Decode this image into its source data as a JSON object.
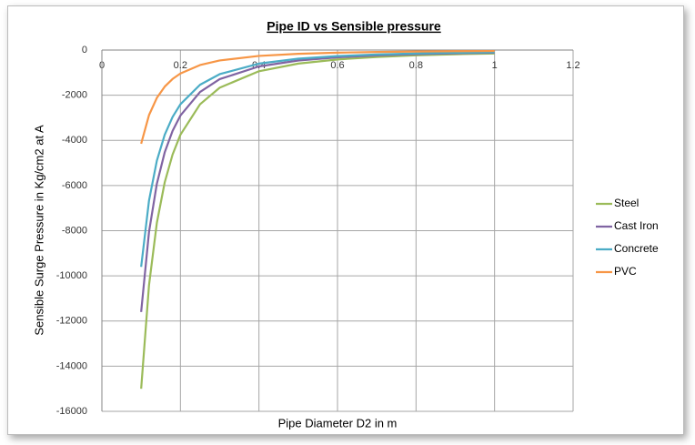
{
  "chart_data": {
    "type": "line",
    "title": "Pipe ID vs Sensible pressure",
    "x_label": "Pipe Diameter D2 in m",
    "y_label": "Sensible Surge Pressure in Kg/cm2 at A",
    "x": [
      0.1,
      0.12,
      0.14,
      0.16,
      0.18,
      0.2,
      0.25,
      0.3,
      0.4,
      0.5,
      0.6,
      0.7,
      0.8,
      0.9,
      1.0
    ],
    "series": [
      {
        "name": "Steel",
        "color": "#9bbb59",
        "values": [
          -15000,
          -10417,
          -7653,
          -5859,
          -4630,
          -3750,
          -2400,
          -1667,
          -938,
          -600,
          -417,
          -306,
          -234,
          -185,
          -150
        ]
      },
      {
        "name": "Cast Iron",
        "color": "#8064a2",
        "values": [
          -11600,
          -8056,
          -5918,
          -4531,
          -3580,
          -2900,
          -1856,
          -1289,
          -725,
          -464,
          -322,
          -237,
          -181,
          -143,
          -116
        ]
      },
      {
        "name": "Concrete",
        "color": "#4bacc6",
        "values": [
          -9600,
          -6667,
          -4898,
          -3750,
          -2963,
          -2400,
          -1536,
          -1067,
          -600,
          -384,
          -267,
          -196,
          -150,
          -119,
          -96
        ]
      },
      {
        "name": "PVC",
        "color": "#f79646",
        "values": [
          -4150,
          -2882,
          -2117,
          -1621,
          -1281,
          -1038,
          -664,
          -461,
          -259,
          -166,
          -115,
          -85,
          -65,
          -51,
          -42
        ]
      }
    ],
    "xlim": [
      0,
      1.2
    ],
    "xticks": [
      0,
      0.2,
      0.4,
      0.6,
      0.8,
      1,
      1.2
    ],
    "ylim": [
      -16000,
      0
    ],
    "yticks": [
      0,
      -2000,
      -4000,
      -6000,
      -8000,
      -10000,
      -12000,
      -14000,
      -16000
    ],
    "grid": true,
    "legend": "right"
  }
}
